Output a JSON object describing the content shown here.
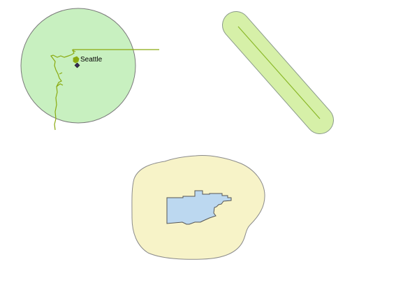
{
  "map": {
    "features": [
      {
        "id": "point-buffer",
        "description_kind": "circular buffer around a point feature",
        "city_label": "Seattle",
        "fill_color": "#c8f0c0",
        "stroke_color": "#7a7a7a",
        "coastline_color": "#8aaa10"
      },
      {
        "id": "line-buffer",
        "description_kind": "buffer around a line feature",
        "fill_color": "#d6f0a8",
        "stroke_color": "#8a9a8a",
        "line_color": "#8ab828"
      },
      {
        "id": "polygon-buffer",
        "description_kind": "buffer around a polygon feature",
        "fill_color": "#f7f3c8",
        "stroke_color": "#8a8a8a",
        "inner_fill_color": "#bcd8f0",
        "inner_stroke_color": "#555555"
      }
    ]
  }
}
